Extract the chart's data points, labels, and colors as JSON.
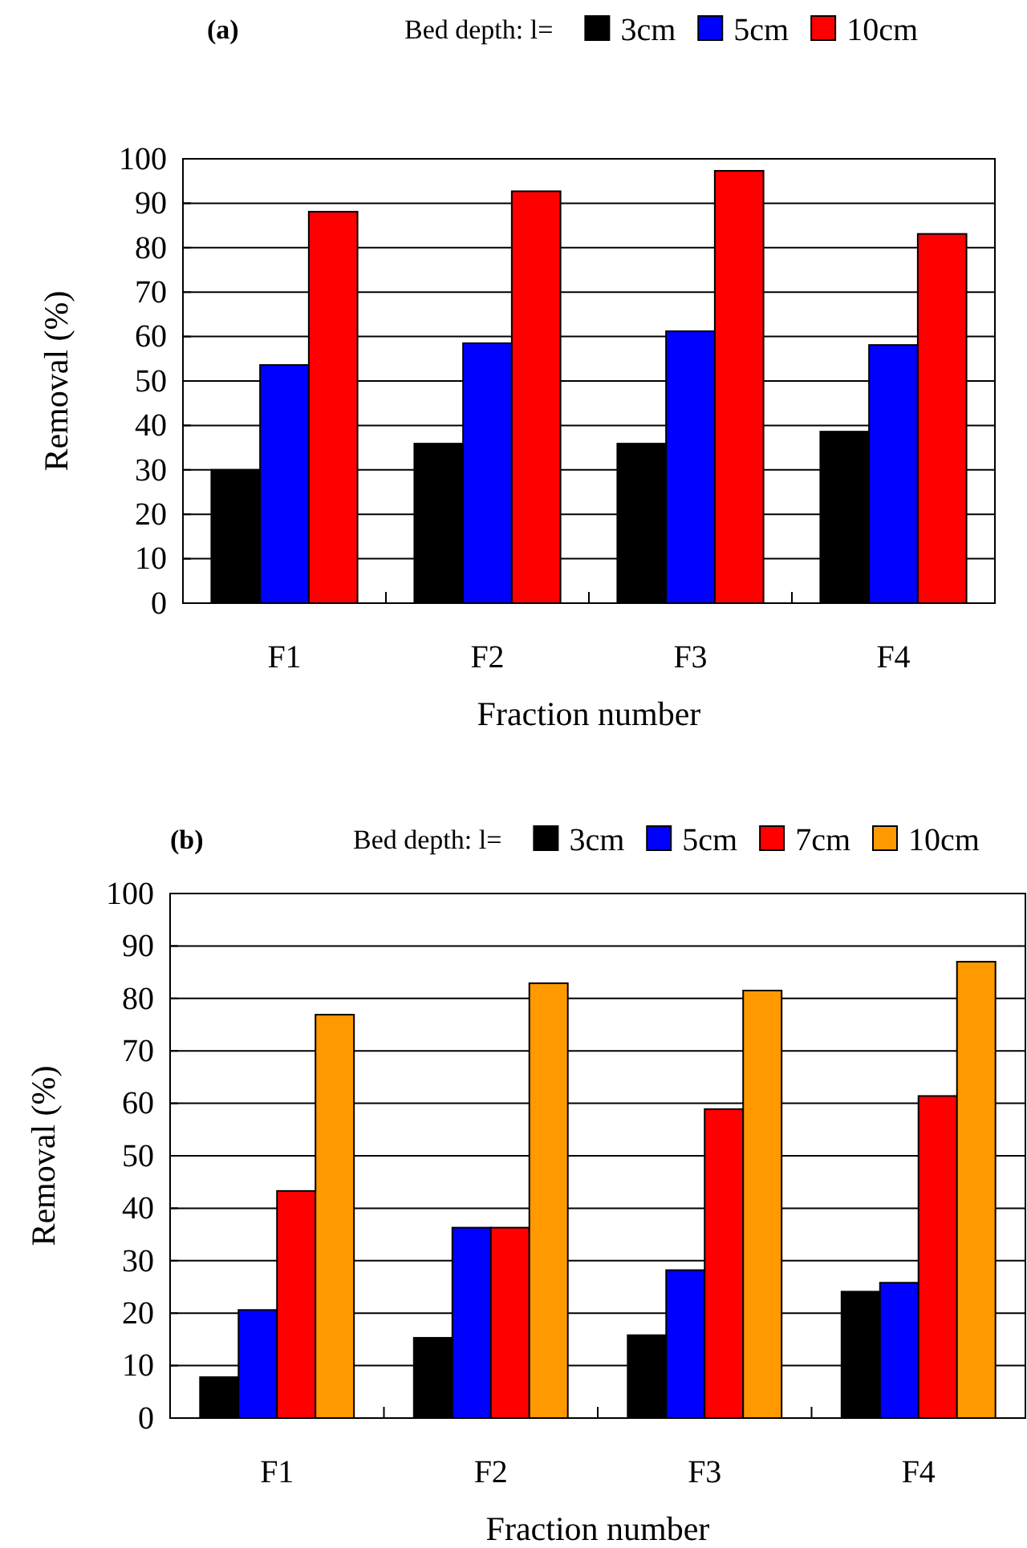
{
  "chart_data": [
    {
      "type": "bar",
      "title": "(a)",
      "legend_title": "Bed depth: l=",
      "xlabel": "Fraction number",
      "ylabel": "Removal (%)",
      "categories": [
        "F1",
        "F2",
        "F3",
        "F4"
      ],
      "series": [
        {
          "name": "3cm",
          "color": "#000000",
          "values": [
            30,
            35.9,
            35.9,
            38.6
          ]
        },
        {
          "name": "5cm",
          "color": "#0000ff",
          "values": [
            53.6,
            58.5,
            61.2,
            58.1
          ]
        },
        {
          "name": "10cm",
          "color": "#ff0000",
          "values": [
            88.1,
            92.7,
            97.3,
            83.1
          ]
        }
      ],
      "ylim": [
        0,
        100
      ],
      "yticks": [
        0,
        10,
        20,
        30,
        40,
        50,
        60,
        70,
        80,
        90,
        100
      ],
      "grid": "y",
      "legend": "top"
    },
    {
      "type": "bar",
      "title": "(b)",
      "legend_title": "Bed depth: l=",
      "xlabel": "Fraction number",
      "ylabel": "Removal (%)",
      "categories": [
        "F1",
        "F2",
        "F3",
        "F4"
      ],
      "series": [
        {
          "name": "3cm",
          "color": "#000000",
          "values": [
            7.8,
            15.3,
            15.8,
            24.1
          ]
        },
        {
          "name": "5cm",
          "color": "#0000ff",
          "values": [
            20.6,
            36.3,
            28.2,
            25.8
          ]
        },
        {
          "name": "7cm",
          "color": "#ff0000",
          "values": [
            43.3,
            36.3,
            58.9,
            61.4
          ]
        },
        {
          "name": "10cm",
          "color": "#ff9900",
          "values": [
            76.9,
            82.9,
            81.5,
            87.0
          ]
        }
      ],
      "ylim": [
        0,
        100
      ],
      "yticks": [
        0,
        10,
        20,
        30,
        40,
        50,
        60,
        70,
        80,
        90,
        100
      ],
      "grid": "y",
      "legend": "top"
    }
  ]
}
